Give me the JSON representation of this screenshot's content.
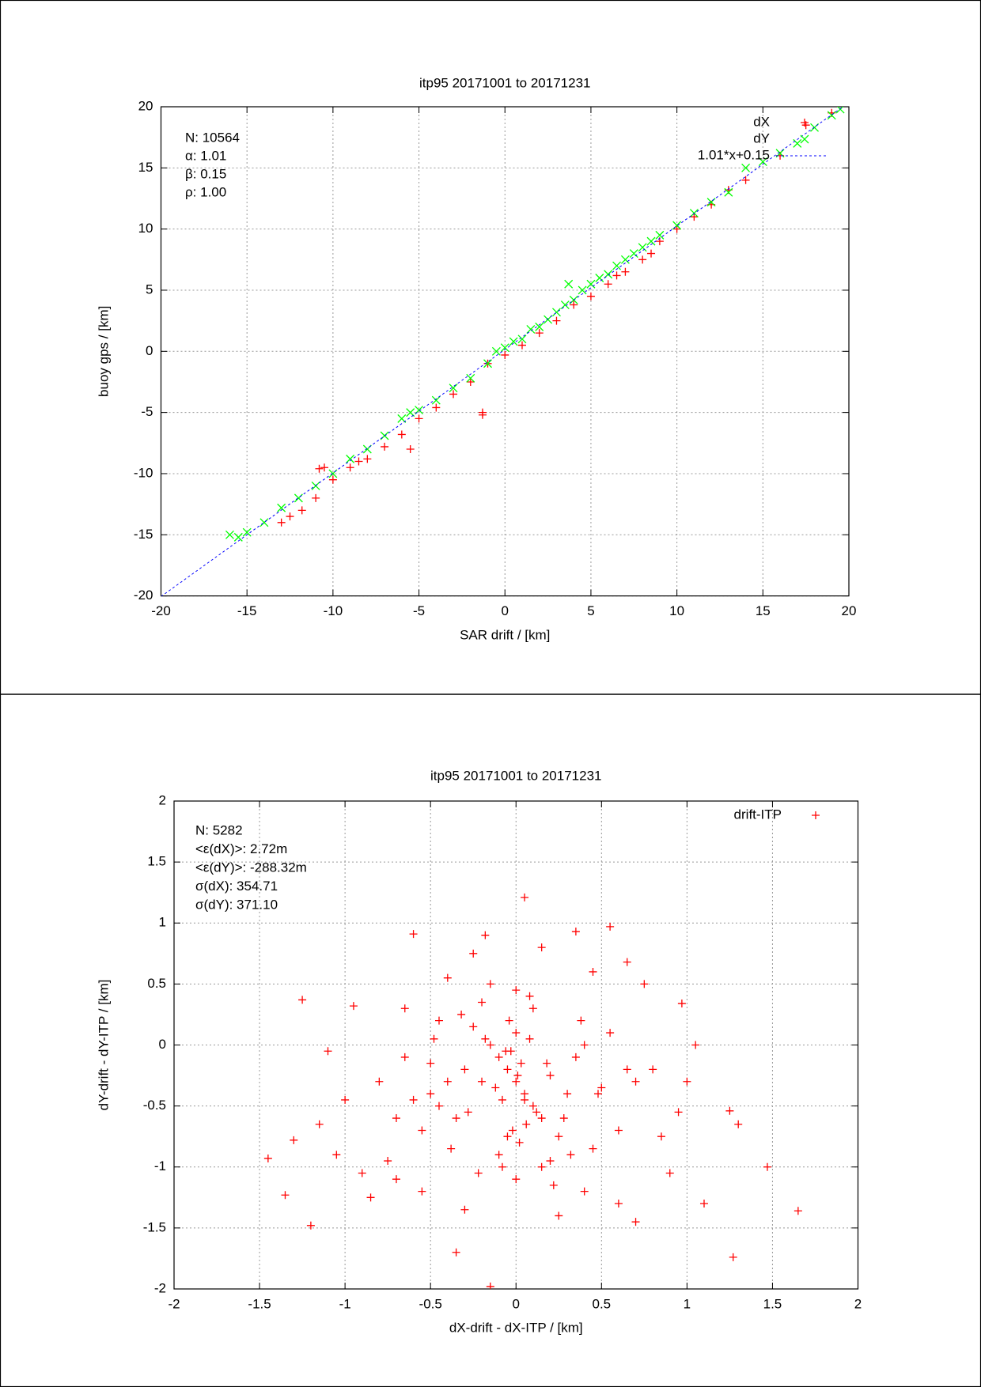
{
  "chart_data": [
    {
      "type": "scatter",
      "title": "itp95 20171001 to 20171231",
      "xlabel": "SAR drift / [km]",
      "ylabel": "buoy gps / [km]",
      "annotations": [
        "N: 10564",
        "α: 1.01",
        "β: 0.15",
        "ρ: 1.00"
      ],
      "xlim": [
        -20,
        20
      ],
      "ylim": [
        -20,
        20
      ],
      "xticks": [
        -20,
        -15,
        -10,
        -5,
        0,
        5,
        10,
        15,
        20
      ],
      "yticks": [
        -20,
        -15,
        -10,
        -5,
        0,
        5,
        10,
        15,
        20
      ],
      "grid": true,
      "legend": "upper right",
      "series": [
        {
          "name": "dX",
          "color": "#ff0000",
          "marker": "+",
          "x": [
            -13,
            -12.5,
            -11.8,
            -11,
            -10.5,
            -10.8,
            -10,
            -9,
            -8.5,
            -8,
            -7,
            -6,
            -5.5,
            -5,
            -4,
            -3,
            -2,
            -1.3,
            -1.3,
            -1,
            0,
            1,
            2,
            3,
            4,
            5,
            6,
            6.5,
            7,
            8,
            8.5,
            9,
            10,
            11,
            12,
            13,
            14,
            16,
            17.5,
            19
          ],
          "values": [
            -14,
            -13.5,
            -13,
            -12,
            -9.5,
            -9.6,
            -10.5,
            -9.5,
            -9,
            -8.8,
            -7.8,
            -6.8,
            -8,
            -5.5,
            -4.6,
            -3.5,
            -2.5,
            -5.2,
            -5,
            -1,
            -0.3,
            0.5,
            1.5,
            2.5,
            3.8,
            4.5,
            5.5,
            6.2,
            6.5,
            7.5,
            8,
            9,
            10,
            11,
            12,
            13.2,
            14,
            16,
            18.5,
            19.5
          ]
        },
        {
          "name": "dY",
          "color": "#00ff00",
          "marker": "x",
          "x": [
            -16,
            -15.5,
            -15,
            -14,
            -13,
            -12,
            -11,
            -10,
            -9,
            -8,
            -7,
            -6,
            -5.5,
            -5,
            -4,
            -3,
            -2,
            -1,
            -0.5,
            0,
            0.5,
            1,
            1.5,
            2,
            2.5,
            3,
            3.5,
            3.7,
            4,
            4.5,
            5,
            5.5,
            6,
            6.5,
            7,
            7.5,
            8,
            8.5,
            9,
            10,
            11,
            12,
            13,
            14,
            15,
            16,
            17,
            18,
            19,
            19.5
          ],
          "values": [
            -15,
            -15.2,
            -14.8,
            -14,
            -12.8,
            -12,
            -11,
            -10,
            -8.8,
            -8,
            -6.9,
            -5.5,
            -5,
            -4.8,
            -4,
            -3,
            -2.2,
            -1,
            0,
            0.3,
            0.8,
            1,
            1.8,
            2,
            2.6,
            3.2,
            3.8,
            5.5,
            4.2,
            5,
            5.5,
            6,
            6.3,
            7,
            7.5,
            8,
            8.5,
            9,
            9.5,
            10.3,
            11.3,
            12.2,
            13,
            15,
            15.5,
            16.2,
            17,
            18.3,
            19.3,
            19.8
          ]
        },
        {
          "name": "1.01*x+0.15",
          "color": "#0000ff",
          "marker": "line",
          "x": [
            -20,
            19.65
          ],
          "values": [
            -20.05,
            20
          ]
        }
      ]
    },
    {
      "type": "scatter",
      "title": "itp95 20171001 to 20171231",
      "xlabel": "dX-drift - dX-ITP / [km]",
      "ylabel": "dY-drift - dY-ITP / [km]",
      "annotations": [
        "N: 5282",
        "<ε(dX)>:  2.72m",
        "<ε(dY)>: -288.32m",
        "σ(dX):  354.71",
        "σ(dY):  371.10"
      ],
      "xlim": [
        -2,
        2
      ],
      "ylim": [
        -2,
        2
      ],
      "xticks": [
        -2,
        -1.5,
        -1,
        -0.5,
        0,
        0.5,
        1,
        1.5,
        2
      ],
      "yticks": [
        -2,
        -1.5,
        -1,
        -0.5,
        0,
        0.5,
        1,
        1.5,
        2
      ],
      "grid": true,
      "legend": "upper right",
      "series": [
        {
          "name": "drift-ITP",
          "color": "#ff0000",
          "marker": "+",
          "x": [
            -1.45,
            -1.25,
            -1.35,
            -1.2,
            -1.1,
            -0.95,
            -0.6,
            0.05,
            0.55,
            -0.35,
            -0.15,
            1.27,
            1.47,
            1.65,
            1.3,
            1.25,
            1.1,
            1.05,
            0.97,
            -1.3,
            -1.0,
            -0.85,
            -0.7,
            0.7,
            0.9,
            0.35,
            -0.18,
            0.75,
            0.65,
            -0.45,
            -0.5,
            -1.15,
            -1.05,
            -0.9,
            -0.8,
            -0.75,
            -0.65,
            -0.55,
            0.8,
            0.85,
            0.95,
            1.0,
            0.6,
            -0.25,
            0.15,
            0.45,
            -0.4,
            0.25,
            -0.3,
            0.4,
            0.0,
            -0.05,
            0.05,
            -0.1,
            0.1,
            -0.15,
            0.15,
            -0.2,
            0.2,
            0.0,
            -0.02,
            0.03,
            -0.08,
            0.08,
            -0.12,
            0.12,
            0.02,
            -0.04,
            0.06,
            -0.06,
            -0.3,
            0.3,
            -0.35,
            0.35,
            -0.25,
            0.25,
            -0.4,
            0.4,
            -0.45,
            0.45,
            -0.5,
            0.5,
            -0.55,
            0.55,
            -0.1,
            0.1,
            -0.2,
            0.2,
            0.0,
            -0.28,
            0.28,
            -0.38,
            0.38,
            -0.18,
            0.18,
            -0.6,
            0.6,
            -0.65,
            0.65,
            -0.08,
            0.08,
            0.0,
            -0.15,
            0.15,
            -0.32,
            0.32,
            -0.48,
            0.48,
            -0.22,
            0.22,
            -0.7,
            0.7,
            -0.05,
            0.05,
            0.01,
            -0.03
          ],
          "values": [
            -0.93,
            0.37,
            -1.23,
            -1.48,
            -0.05,
            0.32,
            0.91,
            1.21,
            0.97,
            -1.7,
            -1.98,
            -1.74,
            -1.0,
            -1.36,
            -0.65,
            -0.54,
            -1.3,
            0.0,
            0.34,
            -0.78,
            -0.45,
            -1.25,
            -1.1,
            -1.45,
            -1.05,
            0.93,
            0.9,
            0.5,
            0.68,
            0.2,
            -0.4,
            -0.65,
            -0.9,
            -1.05,
            -0.3,
            -0.95,
            0.3,
            -1.2,
            -0.2,
            -0.75,
            -0.55,
            -0.3,
            -1.3,
            0.75,
            0.8,
            0.6,
            0.55,
            -1.4,
            -1.35,
            -1.2,
            -0.3,
            -0.2,
            -0.4,
            -0.1,
            -0.5,
            0.0,
            -0.6,
            -0.3,
            -0.25,
            0.1,
            -0.7,
            -0.15,
            -0.45,
            0.05,
            -0.35,
            -0.55,
            -0.8,
            0.2,
            -0.65,
            -0.05,
            -0.2,
            -0.4,
            -0.6,
            -0.1,
            0.15,
            -0.75,
            -0.3,
            0.0,
            -0.5,
            -0.85,
            -0.15,
            -0.35,
            -0.7,
            0.1,
            -0.9,
            0.3,
            0.35,
            -0.95,
            0.45,
            -0.55,
            -0.6,
            -0.85,
            0.2,
            0.05,
            -0.15,
            -0.45,
            -0.7,
            -0.1,
            -0.2,
            -1.0,
            0.4,
            -1.1,
            0.5,
            -1.0,
            0.25,
            -0.9,
            0.05,
            -0.4,
            -1.05,
            -1.15,
            -0.6,
            -0.3,
            -0.75,
            -0.45,
            -0.25,
            -0.05
          ]
        }
      ]
    }
  ]
}
